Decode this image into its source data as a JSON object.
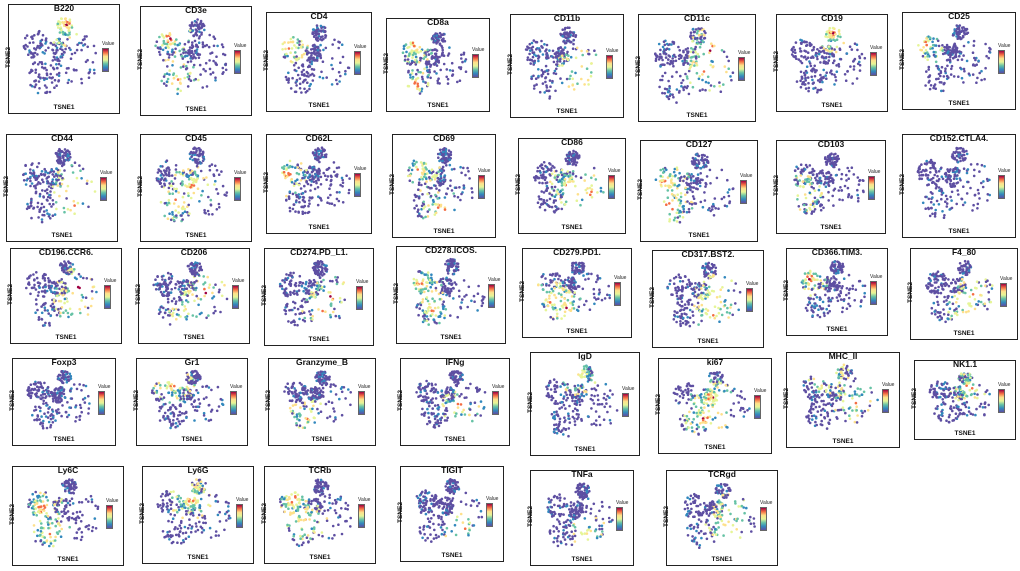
{
  "figure": {
    "xlabel": "TSNE1",
    "ylabel": "TSNE2",
    "legend_title": "Value",
    "colormap": [
      "#5e4fa2",
      "#3288bd",
      "#66c2a5",
      "#e6f598",
      "#fee08b",
      "#f46d43",
      "#9e0142"
    ]
  },
  "chart_data": {
    "type": "scatter",
    "xlabel": "TSNE1",
    "ylabel": "TSNE2",
    "color_legend": "Value",
    "panels": [
      {
        "title": "B220"
      },
      {
        "title": "CD3e"
      },
      {
        "title": "CD4"
      },
      {
        "title": "CD8a"
      },
      {
        "title": "CD11b"
      },
      {
        "title": "CD11c"
      },
      {
        "title": "CD19"
      },
      {
        "title": "CD25"
      },
      {
        "title": "CD44"
      },
      {
        "title": "CD45"
      },
      {
        "title": "CD62L"
      },
      {
        "title": "CD69"
      },
      {
        "title": "CD86"
      },
      {
        "title": "CD127"
      },
      {
        "title": "CD103"
      },
      {
        "title": "CD152.CTLA4."
      },
      {
        "title": "CD196.CCR6."
      },
      {
        "title": "CD206"
      },
      {
        "title": "CD274.PD_L1."
      },
      {
        "title": "CD278.ICOS."
      },
      {
        "title": "CD279.PD1."
      },
      {
        "title": "CD317.BST2."
      },
      {
        "title": "CD366.TIM3."
      },
      {
        "title": "F4_80"
      },
      {
        "title": "Foxp3"
      },
      {
        "title": "Gr1"
      },
      {
        "title": "Granzyme_B"
      },
      {
        "title": "IFNg"
      },
      {
        "title": "IgD"
      },
      {
        "title": "ki67"
      },
      {
        "title": "MHC_II"
      },
      {
        "title": "NK1.1"
      },
      {
        "title": "Ly6C"
      },
      {
        "title": "Ly6G"
      },
      {
        "title": "TCRb"
      },
      {
        "title": "TIGIT"
      },
      {
        "title": "TNFa"
      },
      {
        "title": "TCRgd"
      }
    ]
  }
}
